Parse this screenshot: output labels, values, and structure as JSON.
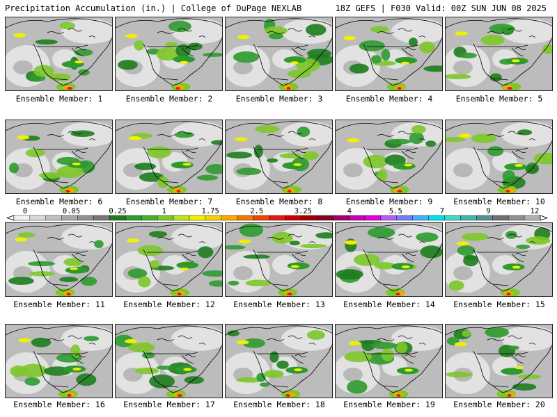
{
  "header": {
    "left": "Precipitation Accumulation (in.) | College of DuPage NEXLAB",
    "right": "18Z GEFS | F030 Valid: 00Z SUN JUN 08 2025"
  },
  "members": [
    {
      "label": "Ensemble Member: 1"
    },
    {
      "label": "Ensemble Member: 2"
    },
    {
      "label": "Ensemble Member: 3"
    },
    {
      "label": "Ensemble Member: 4"
    },
    {
      "label": "Ensemble Member: 5"
    },
    {
      "label": "Ensemble Member: 6"
    },
    {
      "label": "Ensemble Member: 7"
    },
    {
      "label": "Ensemble Member: 8"
    },
    {
      "label": "Ensemble Member: 9"
    },
    {
      "label": "Ensemble Member: 10"
    },
    {
      "label": "Ensemble Member: 11"
    },
    {
      "label": "Ensemble Member: 12"
    },
    {
      "label": "Ensemble Member: 13"
    },
    {
      "label": "Ensemble Member: 14"
    },
    {
      "label": "Ensemble Member: 15"
    },
    {
      "label": "Ensemble Member: 16"
    },
    {
      "label": "Ensemble Member: 17"
    },
    {
      "label": "Ensemble Member: 18"
    },
    {
      "label": "Ensemble Member: 19"
    },
    {
      "label": "Ensemble Member: 20"
    }
  ],
  "legend": {
    "ticks": [
      "0",
      "0.05",
      "0.25",
      "1",
      "1.75",
      "2.5",
      "3.25",
      "4",
      "5.5",
      "7",
      "9",
      "12"
    ],
    "colors": [
      "#f0f0f0",
      "#d8d8d8",
      "#c0c0c0",
      "#a8a8a8",
      "#909090",
      "#787878",
      "#1e7d1e",
      "#2e9a2e",
      "#45b02e",
      "#7cc82a",
      "#c0e020",
      "#f0f000",
      "#f8d000",
      "#f8a800",
      "#f07800",
      "#e84800",
      "#e01818",
      "#c80000",
      "#a00000",
      "#800028",
      "#a0006e",
      "#c800b4",
      "#e000e0",
      "#b060f0",
      "#7080f8",
      "#40b0f8",
      "#00e0f0",
      "#40d8c8",
      "#40b8a8",
      "#509090",
      "#707070",
      "#909090",
      "#b0b0b0"
    ]
  },
  "map_colors": {
    "background": "#bcbcbc",
    "light_gray": "#e2e2e2",
    "dark_gray": "#8e8e8e",
    "green_dark": "#1e7d1e",
    "green": "#2e9a2e",
    "green_light": "#7cc82a",
    "yellow": "#f0f000",
    "orange": "#f8a800",
    "red": "#e01818",
    "magenta": "#c800b4",
    "land_outline": "#000000"
  }
}
